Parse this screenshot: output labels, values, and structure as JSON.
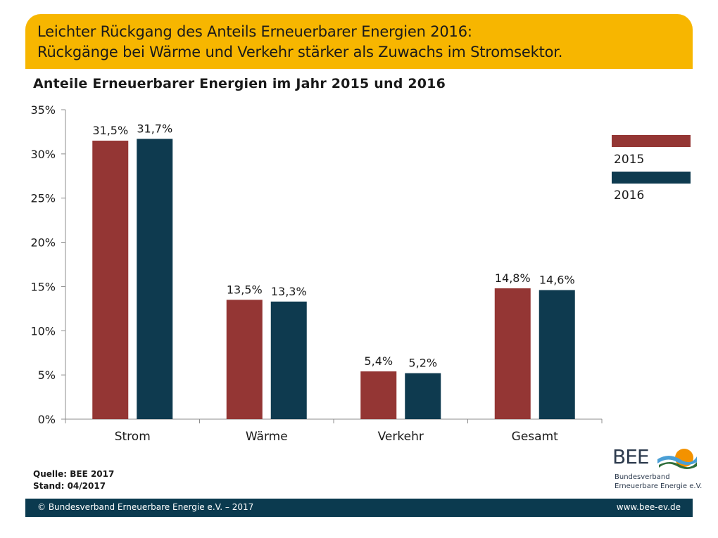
{
  "header": {
    "line1": "Leichter Rückgang des Anteils Erneuerbarer Energien 2016:",
    "line2": "Rückgänge bei Wärme und Verkehr stärker als Zuwachs im Stromsektor."
  },
  "chart_data": {
    "type": "bar",
    "title": "Anteile Erneuerbarer Energien im Jahr 2015 und 2016",
    "categories": [
      "Strom",
      "Wärme",
      "Verkehr",
      "Gesamt"
    ],
    "series": [
      {
        "name": "2015",
        "values": [
          31.5,
          13.5,
          5.4,
          14.8
        ],
        "labels": [
          "31,5%",
          "13,5%",
          "5,4%",
          "14,8%"
        ],
        "color": "#943634"
      },
      {
        "name": "2016",
        "values": [
          31.7,
          13.3,
          5.2,
          14.6
        ],
        "labels": [
          "31,7%",
          "13,3%",
          "5,2%",
          "14,6%"
        ],
        "color": "#0e3a4f"
      }
    ],
    "ylim": [
      0,
      35
    ],
    "yticks": [
      0,
      5,
      10,
      15,
      20,
      25,
      30,
      35
    ],
    "ytick_labels": [
      "0%",
      "5%",
      "10%",
      "15%",
      "20%",
      "25%",
      "30%",
      "35%"
    ],
    "xlabel": "",
    "ylabel": "",
    "grid": false,
    "legend_position": "right"
  },
  "meta": {
    "source": "Quelle: BEE 2017",
    "stand": "Stand: 04/2017"
  },
  "logo": {
    "main": "BEE",
    "sub1": "Bundesverband",
    "sub2": "Erneuerbare Energie e.V."
  },
  "footer": {
    "left": "© Bundesverband Erneuerbare Energie e.V. – 2017",
    "right": "www.bee-ev.de"
  }
}
